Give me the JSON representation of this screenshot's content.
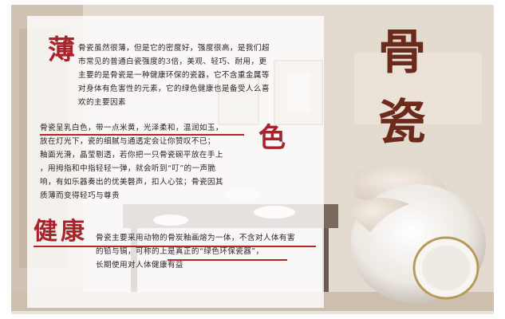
{
  "banner": {
    "title_chars": [
      "骨",
      "瓷"
    ],
    "sections": [
      {
        "heading": "薄",
        "lines": [
          "骨瓷虽然很薄，但是它的密度好，强度很高，是我们超",
          "市常见的普通白瓷强度的3倍，美观、轻巧、耐用，更",
          "主要的是骨瓷是一种健康环保的瓷器，它不含重金属等",
          "对身体有危害性的元素，它的绿色健康也是备受人么喜",
          "欢的主要因素"
        ]
      },
      {
        "heading": "色",
        "lines": [
          "骨瓷呈乳白色，带一点米黄，光泽柔和，温润如玉，",
          "放在灯光下，瓷的细腻与通透定会让你赞叹不已；",
          "釉面光滑，晶莹剔透，若你把一只骨瓷碗平放在手上",
          "，用拇指和中指轻轻一弹，就会听到“叮”的一声脆",
          "响，有如乐器奏出的优美磬声，扣人心弦；骨瓷因其",
          "质薄而变得轻巧与尊贵"
        ]
      },
      {
        "heading": "健康",
        "lines": [
          "骨瓷主要采用动物的骨炭釉画熔为一体，不含对人体有害",
          "的铅与镉，可称的上是真正的“绿色环保瓷器”，",
          "长期使用对人体健康有益"
        ]
      }
    ],
    "colors": {
      "accent_red": "#a8232a",
      "title_brown": "#6b2a1c",
      "underline_red": "#b3262c"
    }
  }
}
